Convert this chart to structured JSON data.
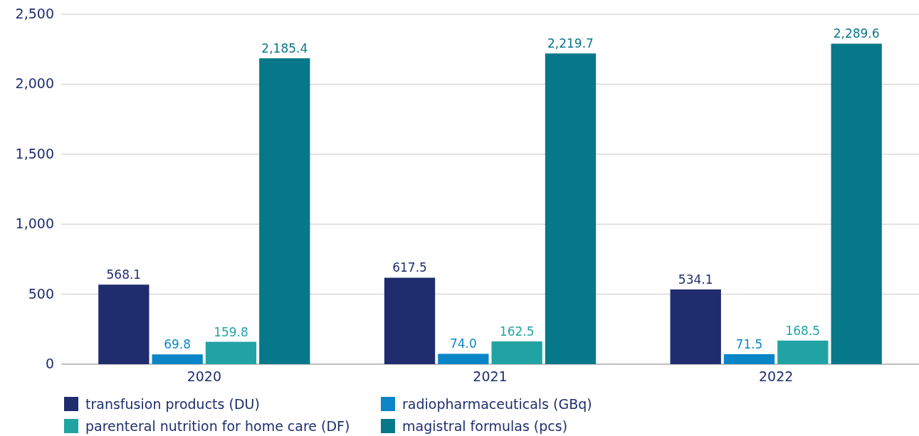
{
  "chart_data": {
    "type": "bar",
    "categories": [
      "2020",
      "2021",
      "2022"
    ],
    "series": [
      {
        "name": "transfusion products (DU)",
        "color": "#1f2d6e",
        "values": [
          568.1,
          617.5,
          534.1
        ]
      },
      {
        "name": "radiopharmaceuticals (GBq)",
        "color": "#0a86c8",
        "values": [
          69.8,
          74.0,
          71.5
        ]
      },
      {
        "name": "parenteral nutrition for home care (DF)",
        "color": "#21a3a3",
        "values": [
          159.8,
          162.5,
          168.5
        ]
      },
      {
        "name": "magistral formulas (pcs)",
        "color": "#077889",
        "values": [
          2185.4,
          2219.7,
          2289.6
        ]
      }
    ],
    "value_labels": [
      [
        "568.1",
        "617.5",
        "534.1"
      ],
      [
        "69.8",
        "74.0",
        "71.5"
      ],
      [
        "159.8",
        "162.5",
        "168.5"
      ],
      [
        "2,185.4",
        "2,219.7",
        "2,289.6"
      ]
    ],
    "ylim": [
      0,
      2500
    ],
    "yticks": [
      {
        "value": 0,
        "label": "0"
      },
      {
        "value": 500,
        "label": "500"
      },
      {
        "value": 1000,
        "label": "1,000"
      },
      {
        "value": 1500,
        "label": "1,500"
      },
      {
        "value": 2000,
        "label": "2,000"
      },
      {
        "value": 2500,
        "label": "2,500"
      }
    ],
    "grid": "y",
    "legend": "bottom"
  }
}
